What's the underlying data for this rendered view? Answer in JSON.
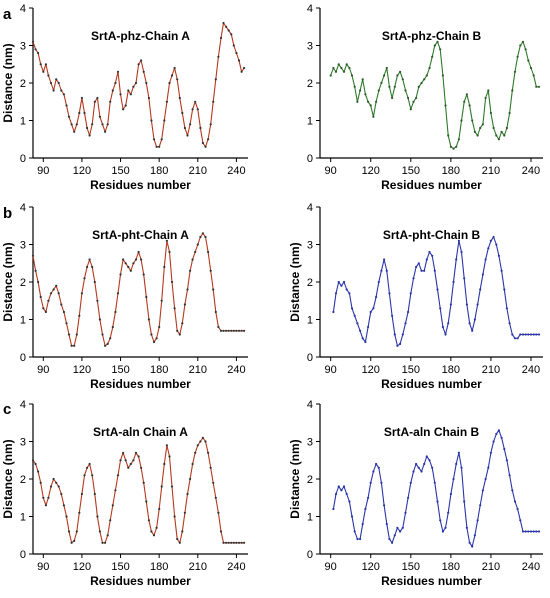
{
  "figure": {
    "panel_letters": [
      "a",
      "b",
      "c"
    ]
  },
  "chart_data": [
    {
      "type": "line",
      "title": "SrtA-phz-Chain A",
      "xlabel": "Residues number",
      "ylabel": "Distance (nm)",
      "xlim": [
        82,
        249
      ],
      "ylim": [
        0,
        4
      ],
      "xticks": [
        90,
        120,
        150,
        180,
        210,
        240
      ],
      "yticks": [
        0,
        1,
        2,
        3,
        4
      ],
      "color": "#b33a1e",
      "marker_color": "#333333",
      "series": [
        {
          "x": [
            82,
            84,
            86,
            88,
            90,
            92,
            94,
            96,
            98,
            100,
            102,
            104,
            106,
            108,
            110,
            112,
            114,
            116,
            118,
            120,
            122,
            124,
            126,
            128,
            130,
            132,
            134,
            136,
            138,
            140,
            142,
            144,
            146,
            148,
            150,
            152,
            154,
            156,
            158,
            160,
            162,
            164,
            166,
            168,
            170,
            172,
            174,
            176,
            178,
            180,
            182,
            184,
            186,
            188,
            190,
            192,
            194,
            196,
            198,
            200,
            202,
            204,
            206,
            208,
            210,
            212,
            214,
            216,
            218,
            220,
            222,
            224,
            226,
            228,
            230,
            232,
            234,
            236,
            238,
            240,
            242,
            244,
            246
          ],
          "y": [
            3.1,
            2.9,
            2.8,
            2.5,
            2.3,
            2.5,
            2.2,
            2.0,
            1.8,
            2.1,
            2.0,
            1.8,
            1.7,
            1.4,
            1.1,
            0.9,
            0.7,
            0.9,
            1.2,
            1.6,
            1.2,
            0.8,
            0.6,
            0.9,
            1.5,
            1.6,
            1.1,
            0.9,
            0.7,
            0.9,
            1.5,
            1.8,
            2.0,
            2.3,
            1.7,
            1.3,
            1.4,
            1.8,
            1.7,
            1.9,
            2.0,
            2.5,
            2.6,
            2.3,
            2.0,
            1.6,
            1.0,
            0.5,
            0.3,
            0.3,
            0.5,
            1.0,
            1.5,
            2.0,
            2.2,
            2.4,
            2.1,
            1.6,
            1.2,
            0.8,
            0.6,
            0.9,
            1.3,
            1.5,
            1.3,
            0.8,
            0.4,
            0.3,
            0.5,
            0.9,
            1.5,
            2.1,
            2.7,
            3.2,
            3.6,
            3.5,
            3.4,
            3.3,
            3.0,
            2.8,
            2.6,
            2.3,
            2.4
          ]
        }
      ]
    },
    {
      "type": "line",
      "title": "SrtA-phz-Chain B",
      "xlabel": "Residues number",
      "ylabel": "",
      "xlim": [
        82,
        249
      ],
      "ylim": [
        0,
        4
      ],
      "xticks": [
        90,
        120,
        150,
        180,
        210,
        240
      ],
      "yticks": [
        0,
        1,
        2,
        3,
        4
      ],
      "color": "#2f7a2a",
      "marker_color": "#2f5a2a",
      "series": [
        {
          "x": [
            90,
            92,
            94,
            96,
            98,
            100,
            102,
            104,
            106,
            108,
            110,
            112,
            114,
            116,
            118,
            120,
            122,
            124,
            126,
            128,
            130,
            132,
            134,
            136,
            138,
            140,
            142,
            144,
            146,
            148,
            150,
            152,
            154,
            156,
            158,
            160,
            162,
            164,
            166,
            168,
            170,
            172,
            174,
            176,
            178,
            180,
            182,
            184,
            186,
            188,
            190,
            192,
            194,
            196,
            198,
            200,
            202,
            204,
            206,
            208,
            210,
            212,
            214,
            216,
            218,
            220,
            222,
            224,
            226,
            228,
            230,
            232,
            234,
            236,
            238,
            240,
            242,
            244,
            246
          ],
          "y": [
            2.2,
            2.4,
            2.3,
            2.5,
            2.4,
            2.3,
            2.5,
            2.4,
            2.2,
            1.9,
            1.5,
            1.8,
            2.1,
            1.7,
            1.5,
            1.4,
            1.1,
            1.5,
            1.8,
            2.0,
            2.2,
            2.4,
            1.9,
            1.6,
            1.9,
            2.2,
            2.3,
            2.1,
            1.8,
            1.6,
            1.3,
            1.5,
            1.6,
            1.9,
            2.0,
            2.1,
            2.2,
            2.4,
            2.7,
            3.0,
            3.1,
            2.9,
            2.2,
            1.4,
            0.6,
            0.3,
            0.25,
            0.3,
            0.5,
            1.0,
            1.5,
            1.7,
            1.4,
            1.0,
            0.7,
            0.6,
            0.8,
            0.9,
            1.6,
            1.8,
            1.2,
            0.8,
            0.6,
            0.5,
            0.7,
            0.6,
            0.8,
            1.2,
            1.8,
            2.3,
            2.7,
            3.0,
            3.1,
            2.9,
            2.6,
            2.4,
            2.2,
            1.9,
            1.9
          ]
        }
      ]
    },
    {
      "type": "line",
      "title": "SrtA-pht-Chain A",
      "xlabel": "Residues number",
      "ylabel": "Distance (nm)",
      "xlim": [
        82,
        249
      ],
      "ylim": [
        0,
        4
      ],
      "xticks": [
        90,
        120,
        150,
        180,
        210,
        240
      ],
      "yticks": [
        0,
        1,
        2,
        3,
        4
      ],
      "color": "#b33a1e",
      "marker_color": "#333333",
      "series": [
        {
          "x": [
            82,
            84,
            86,
            88,
            90,
            92,
            94,
            96,
            98,
            100,
            102,
            104,
            106,
            108,
            110,
            112,
            114,
            116,
            118,
            120,
            122,
            124,
            126,
            128,
            130,
            132,
            134,
            136,
            138,
            140,
            142,
            144,
            146,
            148,
            150,
            152,
            154,
            156,
            158,
            160,
            162,
            164,
            166,
            168,
            170,
            172,
            174,
            176,
            178,
            180,
            182,
            184,
            186,
            188,
            190,
            192,
            194,
            196,
            198,
            200,
            202,
            204,
            206,
            208,
            210,
            212,
            214,
            216,
            218,
            220,
            222,
            224,
            226,
            228,
            230,
            232,
            234,
            236,
            238,
            240,
            242,
            244,
            246
          ],
          "y": [
            2.7,
            2.3,
            2.0,
            1.6,
            1.3,
            1.2,
            1.5,
            1.7,
            1.8,
            1.9,
            1.7,
            1.4,
            1.2,
            0.9,
            0.6,
            0.3,
            0.3,
            0.6,
            1.1,
            1.7,
            2.1,
            2.4,
            2.6,
            2.4,
            2.0,
            1.5,
            1.0,
            0.6,
            0.3,
            0.35,
            0.5,
            0.8,
            1.2,
            1.7,
            2.2,
            2.6,
            2.5,
            2.4,
            2.3,
            2.5,
            2.6,
            2.8,
            2.6,
            2.2,
            1.6,
            1.0,
            0.6,
            0.4,
            0.5,
            0.8,
            1.5,
            2.4,
            3.1,
            2.8,
            2.0,
            1.3,
            0.7,
            0.6,
            0.9,
            1.4,
            1.8,
            2.3,
            2.6,
            2.8,
            3.0,
            3.2,
            3.3,
            3.2,
            2.8,
            2.3,
            1.8,
            1.2,
            0.8,
            0.7,
            0.7,
            0.7,
            0.7,
            0.7,
            0.7,
            0.7,
            0.7,
            0.7,
            0.7
          ]
        }
      ]
    },
    {
      "type": "line",
      "title": "SrtA-pht-Chain B",
      "xlabel": "Residues number",
      "ylabel": "Distance (nm)",
      "xlim": [
        82,
        249
      ],
      "ylim": [
        0,
        4
      ],
      "xticks": [
        90,
        120,
        150,
        180,
        210,
        240
      ],
      "yticks": [
        0,
        1,
        2,
        3,
        4
      ],
      "color": "#2a36a8",
      "marker_color": "#2a36a8",
      "series": [
        {
          "x": [
            92,
            94,
            96,
            98,
            100,
            102,
            104,
            106,
            108,
            110,
            112,
            114,
            116,
            118,
            120,
            122,
            124,
            126,
            128,
            130,
            132,
            134,
            136,
            138,
            140,
            142,
            144,
            146,
            148,
            150,
            152,
            154,
            156,
            158,
            160,
            162,
            164,
            166,
            168,
            170,
            172,
            174,
            176,
            178,
            180,
            182,
            184,
            186,
            188,
            190,
            192,
            194,
            196,
            198,
            200,
            202,
            204,
            206,
            208,
            210,
            212,
            214,
            216,
            218,
            220,
            222,
            224,
            226,
            228,
            230,
            232,
            234,
            236,
            238,
            240,
            242,
            244,
            246
          ],
          "y": [
            1.2,
            1.7,
            2.0,
            1.9,
            2.0,
            1.8,
            1.7,
            1.3,
            1.1,
            0.9,
            0.7,
            0.5,
            0.4,
            0.8,
            1.2,
            1.3,
            1.6,
            2.0,
            2.3,
            2.6,
            2.3,
            1.7,
            1.1,
            0.6,
            0.3,
            0.35,
            0.6,
            0.9,
            1.2,
            1.7,
            2.1,
            2.4,
            2.5,
            2.3,
            2.3,
            2.6,
            2.8,
            2.7,
            2.3,
            1.8,
            1.3,
            0.8,
            0.6,
            0.9,
            1.4,
            2.0,
            2.6,
            3.1,
            2.8,
            2.1,
            1.4,
            0.9,
            0.7,
            1.0,
            1.4,
            1.8,
            2.2,
            2.6,
            2.9,
            3.1,
            3.2,
            3.0,
            2.7,
            2.3,
            1.8,
            1.3,
            0.9,
            0.6,
            0.5,
            0.5,
            0.6,
            0.6,
            0.6,
            0.6,
            0.6,
            0.6,
            0.6,
            0.6
          ]
        }
      ]
    },
    {
      "type": "line",
      "title": "SrtA-aln Chain A",
      "xlabel": "Residues number",
      "ylabel": "Distance (nm)",
      "xlim": [
        82,
        249
      ],
      "ylim": [
        0,
        4
      ],
      "xticks": [
        90,
        120,
        150,
        180,
        210,
        240
      ],
      "yticks": [
        0,
        1,
        2,
        3,
        4
      ],
      "color": "#b33a1e",
      "marker_color": "#333333",
      "series": [
        {
          "x": [
            82,
            84,
            86,
            88,
            90,
            92,
            94,
            96,
            98,
            100,
            102,
            104,
            106,
            108,
            110,
            112,
            114,
            116,
            118,
            120,
            122,
            124,
            126,
            128,
            130,
            132,
            134,
            136,
            138,
            140,
            142,
            144,
            146,
            148,
            150,
            152,
            154,
            156,
            158,
            160,
            162,
            164,
            166,
            168,
            170,
            172,
            174,
            176,
            178,
            180,
            182,
            184,
            186,
            188,
            190,
            192,
            194,
            196,
            198,
            200,
            202,
            204,
            206,
            208,
            210,
            212,
            214,
            216,
            218,
            220,
            222,
            224,
            226,
            228,
            230,
            232,
            234,
            236,
            238,
            240,
            242,
            244,
            246
          ],
          "y": [
            2.5,
            2.4,
            2.2,
            1.9,
            1.5,
            1.3,
            1.5,
            1.8,
            2.0,
            1.9,
            1.8,
            1.6,
            1.3,
            1.0,
            0.6,
            0.3,
            0.35,
            0.6,
            1.1,
            1.6,
            2.1,
            2.3,
            2.4,
            2.1,
            1.6,
            1.0,
            0.6,
            0.3,
            0.3,
            0.5,
            0.9,
            1.3,
            1.7,
            2.1,
            2.5,
            2.7,
            2.5,
            2.3,
            2.4,
            2.5,
            2.7,
            2.6,
            2.3,
            1.9,
            1.4,
            0.9,
            0.6,
            0.5,
            0.7,
            1.2,
            1.8,
            2.4,
            2.9,
            2.6,
            1.8,
            1.0,
            0.4,
            0.3,
            0.6,
            1.1,
            1.6,
            2.0,
            2.4,
            2.7,
            2.9,
            3.0,
            3.1,
            3.0,
            2.7,
            2.3,
            1.9,
            1.5,
            1.1,
            0.6,
            0.3,
            0.3,
            0.3,
            0.3,
            0.3,
            0.3,
            0.3,
            0.3,
            0.3
          ]
        }
      ]
    },
    {
      "type": "line",
      "title": "SrtA-aln Chain B",
      "xlabel": "Residues number",
      "ylabel": "Distance (nm)",
      "xlim": [
        82,
        249
      ],
      "ylim": [
        0,
        4
      ],
      "xticks": [
        90,
        120,
        150,
        180,
        210,
        240
      ],
      "yticks": [
        0,
        1,
        2,
        3,
        4
      ],
      "color": "#2a36a8",
      "marker_color": "#2a36a8",
      "series": [
        {
          "x": [
            92,
            94,
            96,
            98,
            100,
            102,
            104,
            106,
            108,
            110,
            112,
            114,
            116,
            118,
            120,
            122,
            124,
            126,
            128,
            130,
            132,
            134,
            136,
            138,
            140,
            142,
            144,
            146,
            148,
            150,
            152,
            154,
            156,
            158,
            160,
            162,
            164,
            166,
            168,
            170,
            172,
            174,
            176,
            178,
            180,
            182,
            184,
            186,
            188,
            190,
            192,
            194,
            196,
            198,
            200,
            202,
            204,
            206,
            208,
            210,
            212,
            214,
            216,
            218,
            220,
            222,
            224,
            226,
            228,
            230,
            232,
            234,
            236,
            238,
            240,
            242,
            244,
            246
          ],
          "y": [
            1.2,
            1.6,
            1.8,
            1.7,
            1.8,
            1.6,
            1.4,
            1.0,
            0.6,
            0.4,
            0.4,
            0.8,
            1.2,
            1.5,
            1.9,
            2.2,
            2.4,
            2.3,
            1.9,
            1.3,
            0.8,
            0.4,
            0.3,
            0.5,
            0.7,
            0.6,
            0.7,
            1.1,
            1.5,
            1.9,
            2.2,
            2.4,
            2.3,
            2.2,
            2.4,
            2.6,
            2.5,
            2.3,
            1.9,
            1.4,
            0.9,
            0.6,
            0.7,
            1.1,
            1.6,
            2.0,
            2.4,
            2.7,
            2.3,
            1.4,
            0.7,
            0.3,
            0.2,
            0.5,
            0.9,
            1.3,
            1.7,
            2.0,
            2.3,
            2.7,
            3.0,
            3.2,
            3.3,
            3.1,
            2.8,
            2.5,
            2.1,
            1.7,
            1.4,
            1.2,
            0.9,
            0.6,
            0.6,
            0.6,
            0.6,
            0.6,
            0.6,
            0.6
          ]
        }
      ]
    }
  ]
}
